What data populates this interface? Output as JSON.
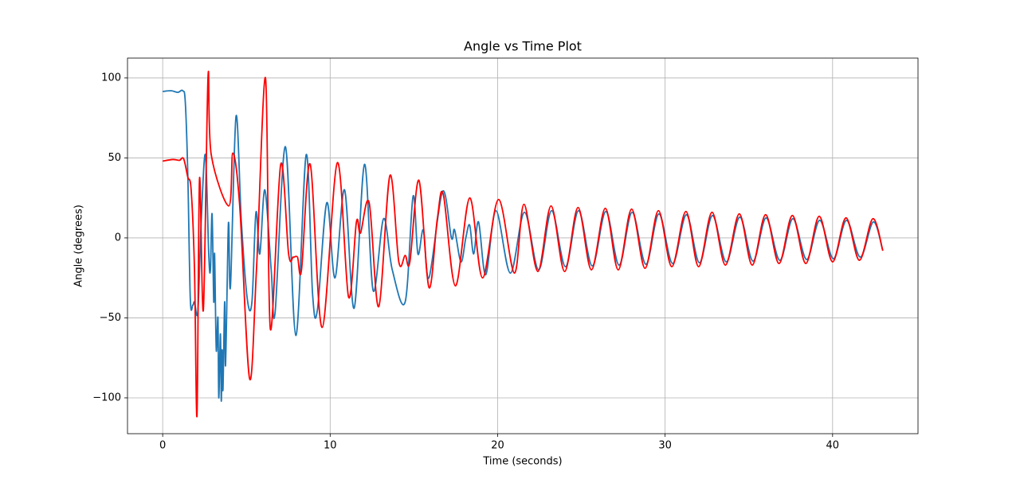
{
  "chart_data": {
    "type": "line",
    "title": "Angle vs Time Plot",
    "x_label": "Time (seconds)",
    "y_label": "Angle (degrees)",
    "xlim": [
      -2.1,
      45.1
    ],
    "ylim": [
      -122.4,
      112.4
    ],
    "xticks": [
      0,
      10,
      20,
      30,
      40
    ],
    "yticks": [
      {
        "value": -100,
        "label": "−100"
      },
      {
        "value": -50,
        "label": "−50"
      },
      0,
      50,
      100
    ],
    "grid": true,
    "series": [
      {
        "color": "#1f77b4",
        "x": [
          0,
          0.5,
          0.9,
          1.2,
          1.35,
          1.5,
          1.65,
          1.8,
          1.9,
          2.1,
          2.3,
          2.55,
          2.75,
          2.85,
          2.95,
          3.05,
          3.1,
          3.2,
          3.3,
          3.35,
          3.45,
          3.5,
          3.55,
          3.6,
          3.7,
          3.75,
          3.85,
          3.9,
          3.95,
          4.05,
          4.38,
          4.7,
          5.05,
          5.33,
          5.57,
          5.8,
          6.1,
          6.48,
          6.71,
          7.33,
          7.95,
          8.57,
          8.95,
          9.24,
          9.8,
          10.29,
          10.86,
          11.43,
          12.05,
          12.57,
          13.19,
          13.71,
          14.48,
          14.95,
          15.24,
          15.57,
          15.9,
          16.71,
          17.24,
          17.43,
          17.81,
          18.1,
          18.33,
          18.57,
          18.86,
          19.29,
          19.9,
          20.76,
          21.6,
          22.45,
          23.22,
          24.05,
          24.83,
          25.65,
          26.46,
          27.25,
          28.03,
          28.85,
          29.63,
          30.45,
          31.27,
          32.05,
          32.83,
          33.65,
          34.46,
          35.25,
          36.03,
          36.85,
          37.63,
          38.45,
          39.23,
          40.05,
          40.83,
          41.65,
          42.43,
          43.0
        ],
        "values": [
          91.5,
          92,
          91,
          92,
          85,
          40,
          -38,
          -42,
          -40,
          -46,
          10,
          52,
          -10,
          -20,
          15,
          -40,
          -10,
          -70,
          -50,
          -100,
          -60,
          -102,
          -70,
          -95,
          -40,
          -80,
          -30,
          0,
          8,
          -30,
          76,
          10,
          -38,
          -40,
          16,
          -10,
          30,
          -20,
          -47,
          57,
          -61,
          52,
          -35,
          -45,
          22,
          -25,
          30,
          -44,
          46,
          -33,
          12,
          -20,
          -40,
          26,
          -10,
          5,
          -25,
          29,
          0,
          5,
          -15,
          0,
          8,
          -10,
          10,
          -23,
          17,
          -22,
          16,
          -20,
          17,
          -18,
          17,
          -17.5,
          16.5,
          -17,
          16,
          -16.5,
          15,
          -16,
          14.5,
          -15.5,
          14,
          -15,
          13,
          -14.5,
          12.5,
          -14,
          12,
          -13.5,
          11,
          -13,
          11,
          -12,
          10,
          -8
        ]
      },
      {
        "color": "#ff0000",
        "x": [
          0,
          0.6,
          1.0,
          1.25,
          1.5,
          1.7,
          1.9,
          2.05,
          2.2,
          2.43,
          2.71,
          2.9,
          3.95,
          4.19,
          4.6,
          5.19,
          5.6,
          6.14,
          6.43,
          7.05,
          7.52,
          7.8,
          8.05,
          8.29,
          8.81,
          9.52,
          10.43,
          11.1,
          11.57,
          11.81,
          12.33,
          12.9,
          13.57,
          14.1,
          14.48,
          14.76,
          15.3,
          15.9,
          16.4,
          16.76,
          17.48,
          18.33,
          19.1,
          20.05,
          21.0,
          21.57,
          22.4,
          23.19,
          24.0,
          24.8,
          25.6,
          26.43,
          27.2,
          28.0,
          28.8,
          29.6,
          30.4,
          31.24,
          32.0,
          32.8,
          33.6,
          34.43,
          35.2,
          36.0,
          36.8,
          37.6,
          38.4,
          39.2,
          40.0,
          40.8,
          41.6,
          42.4,
          43.0
        ],
        "values": [
          48,
          49,
          48.5,
          49.5,
          38,
          30,
          -20,
          -111,
          37,
          -45,
          101,
          52,
          20,
          53,
          20,
          -88,
          -20,
          100,
          -57,
          46,
          -10,
          -12,
          -12,
          -20,
          46,
          -56,
          47,
          -37,
          10,
          3,
          22,
          -43,
          39,
          -15,
          -11,
          -15,
          36,
          -31,
          12,
          27,
          -30,
          25,
          -25,
          24,
          -22,
          21,
          -21,
          20,
          -21,
          19,
          -20,
          18.5,
          -20,
          18,
          -19,
          17,
          -18,
          16.5,
          -18,
          16,
          -17,
          15,
          -17,
          14.5,
          -16,
          14,
          -16,
          13.5,
          -15,
          12.5,
          -14,
          12,
          -8
        ]
      }
    ]
  }
}
